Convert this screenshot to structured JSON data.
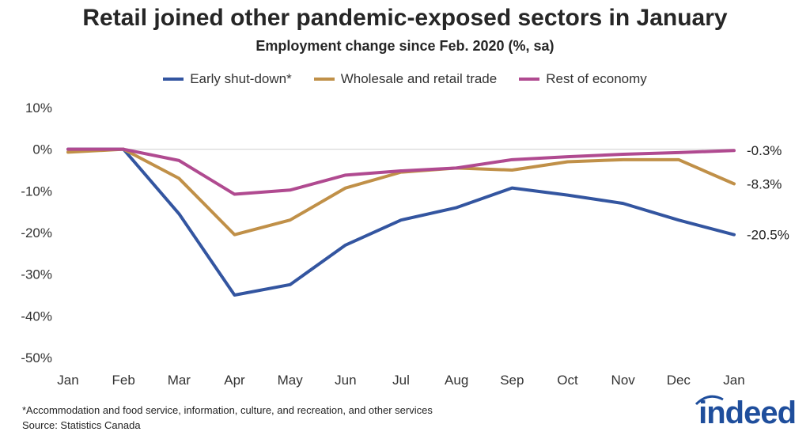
{
  "colors": {
    "early": "#3355A0",
    "wholesale": "#C09048",
    "rest": "#B04A90",
    "logo": "#1f4e9c"
  },
  "footnote": "*Accommodation and food service, information, culture, and recreation, and other services",
  "source": "Source: Statistics Canada",
  "logo": "indeed",
  "chart_data": {
    "type": "line",
    "title": "Retail joined other pandemic-exposed sectors in January",
    "subtitle": "Employment change since Feb. 2020 (%, sa)",
    "categories": [
      "Jan",
      "Feb",
      "Mar",
      "Apr",
      "May",
      "Jun",
      "Jul",
      "Aug",
      "Sep",
      "Oct",
      "Nov",
      "Dec",
      "Jan"
    ],
    "ylim": [
      -50,
      10
    ],
    "yticks": [
      10,
      0,
      -10,
      -20,
      -30,
      -40,
      -50
    ],
    "ytick_labels": [
      "10%",
      "0%",
      "-10%",
      "-20%",
      "-30%",
      "-40%",
      "-50%"
    ],
    "grid": false,
    "legend_position": "top",
    "series": [
      {
        "name": "Early shut-down*",
        "color_key": "early",
        "values": [
          0,
          0,
          -15.5,
          -35,
          -32.5,
          -23,
          -17,
          -14,
          -9.3,
          -11,
          -13,
          -17,
          -20.5
        ],
        "end_label": "-20.5%"
      },
      {
        "name": "Wholesale and retail trade",
        "color_key": "wholesale",
        "values": [
          -0.7,
          0,
          -7,
          -20.5,
          -17,
          -9.3,
          -5.5,
          -4.5,
          -5,
          -3,
          -2.5,
          -2.5,
          -8.3
        ],
        "end_label": "-8.3%"
      },
      {
        "name": "Rest of economy",
        "color_key": "rest",
        "values": [
          0,
          0,
          -2.7,
          -10.8,
          -9.8,
          -6.2,
          -5.2,
          -4.5,
          -2.5,
          -1.8,
          -1.2,
          -0.8,
          -0.3
        ],
        "end_label": "-0.3%"
      }
    ]
  }
}
